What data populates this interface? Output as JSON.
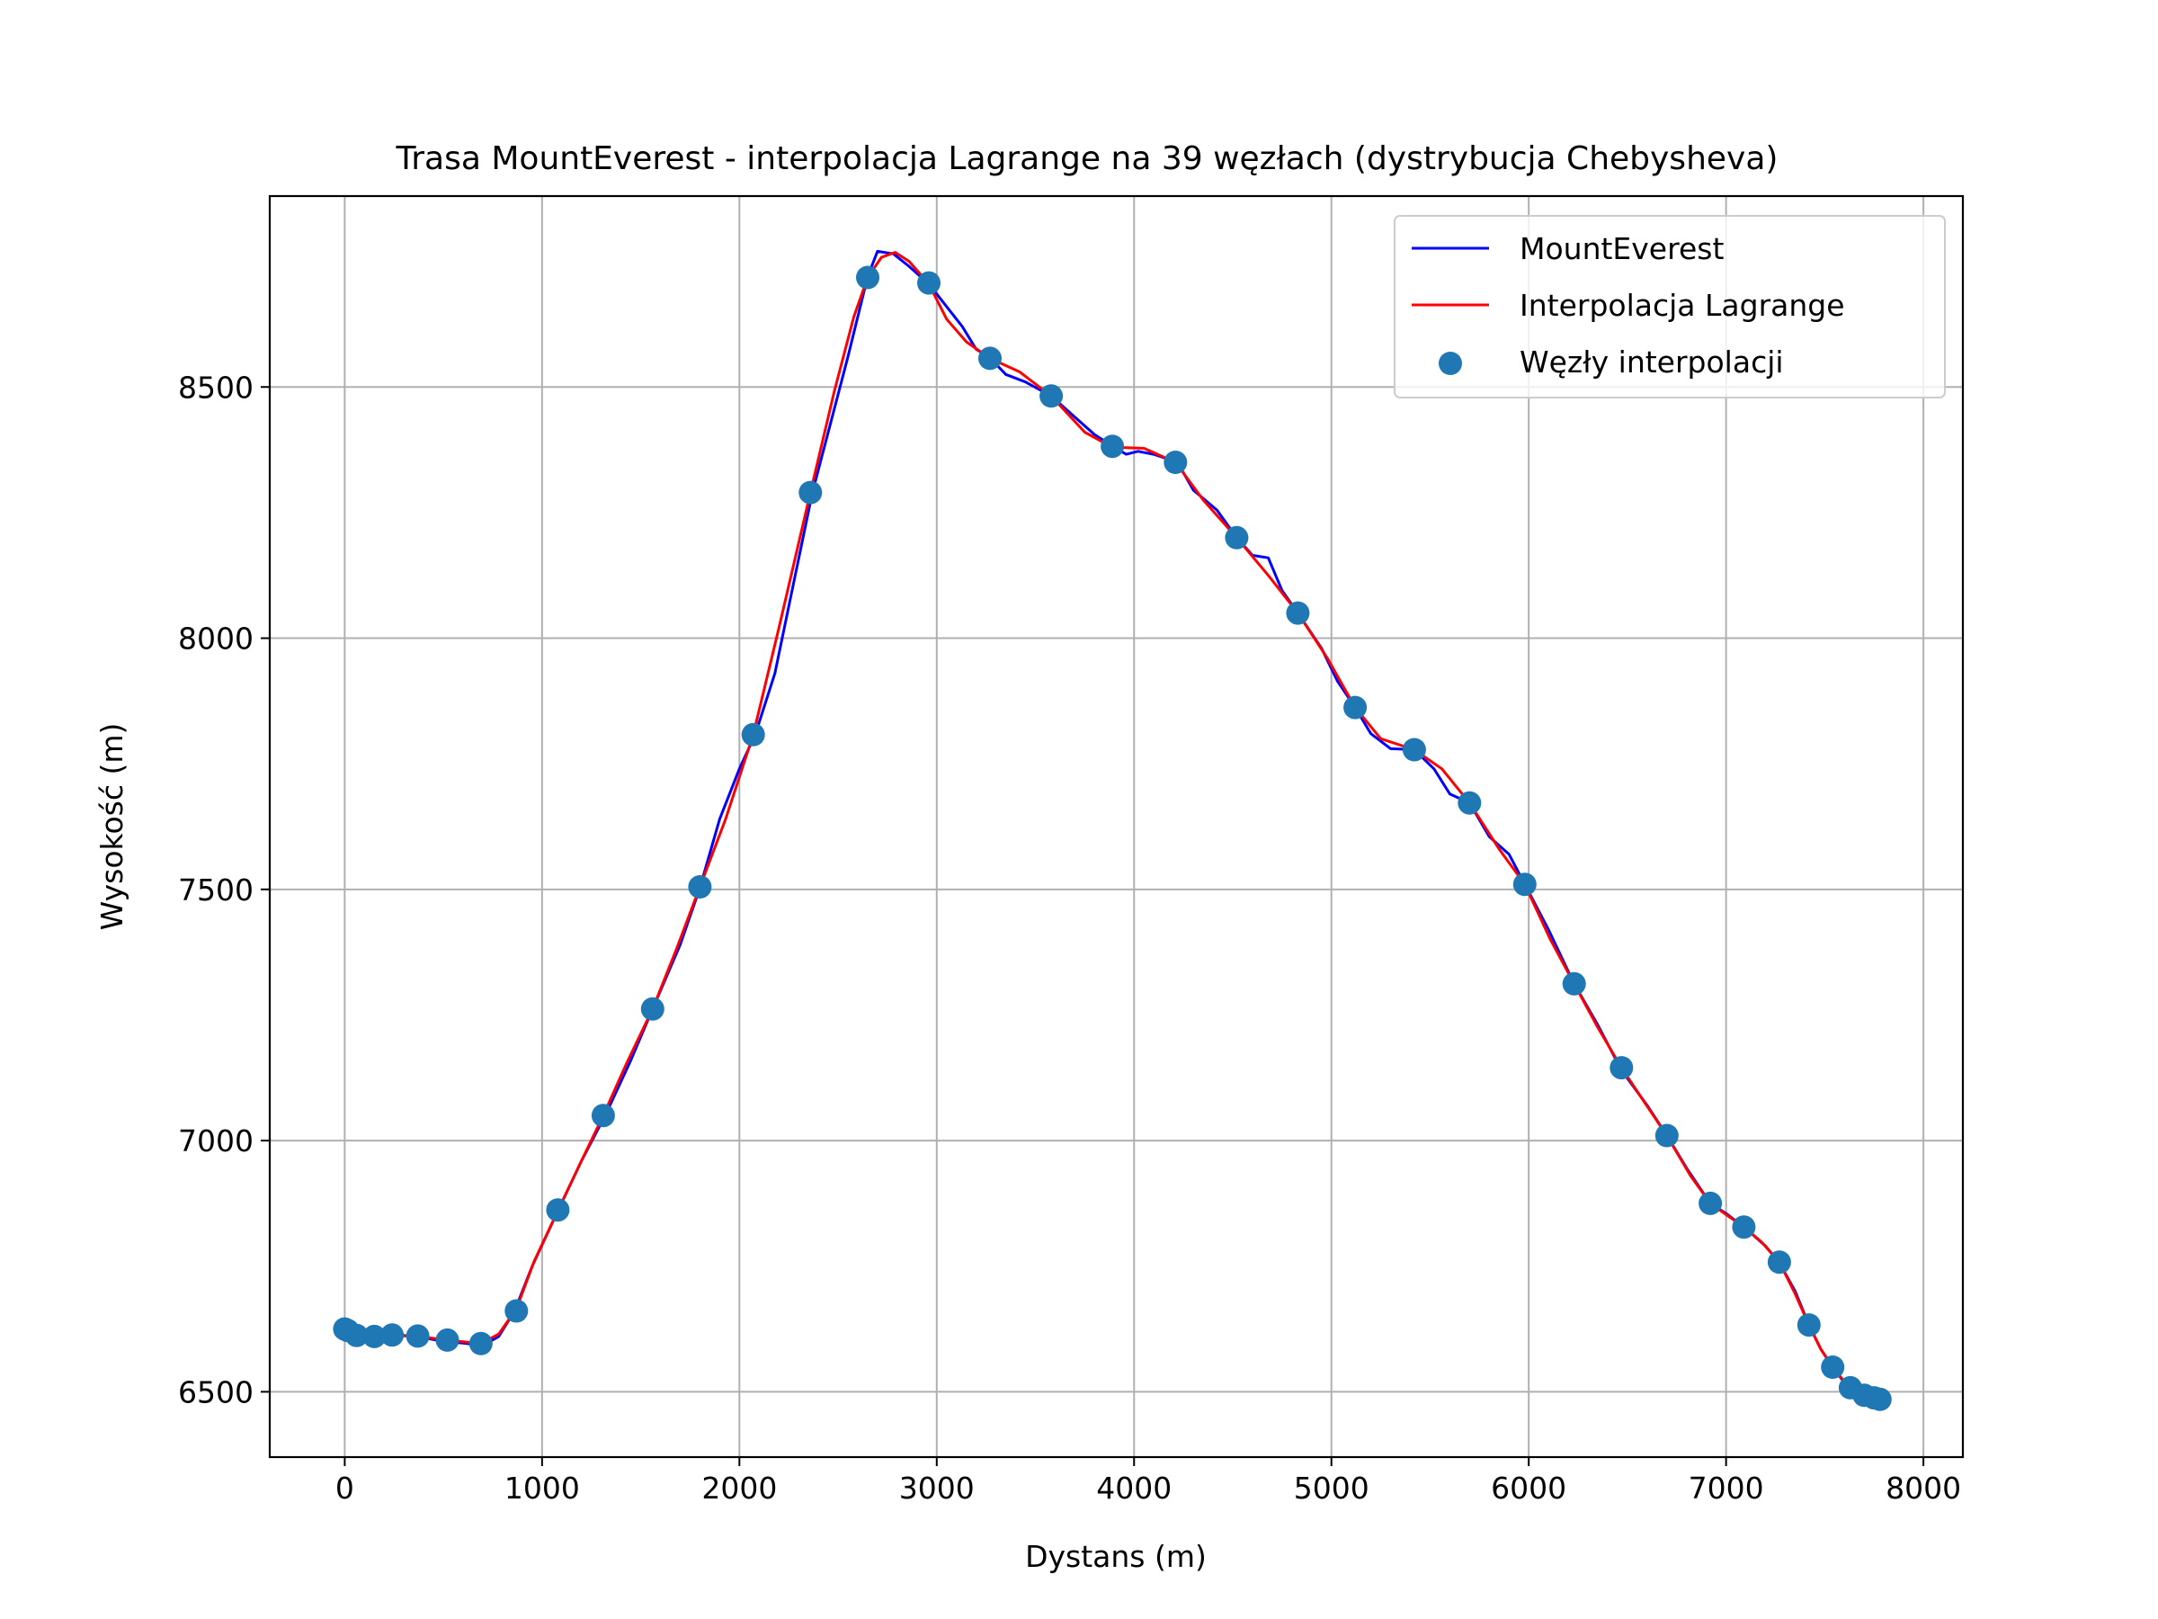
{
  "chart_data": {
    "type": "line",
    "title": "Trasa MountEverest - interpolacja Lagrange na 39 węzłach (dystrybucja Chebysheva)",
    "xlabel": "Dystans (m)",
    "ylabel": "Wysokość (m)",
    "xlim": [
      -380,
      8200
    ],
    "ylim": [
      6370,
      8880
    ],
    "xticks": [
      0,
      1000,
      2000,
      3000,
      4000,
      5000,
      6000,
      7000,
      8000
    ],
    "xtick_labels": [
      "0",
      "1000",
      "2000",
      "3000",
      "4000",
      "5000",
      "6000",
      "7000",
      "8000"
    ],
    "yticks": [
      6500,
      7000,
      7500,
      8000,
      8500
    ],
    "ytick_labels": [
      "6500",
      "7000",
      "7500",
      "8000",
      "8500"
    ],
    "grid": true,
    "legend_position": "top-right",
    "legend": [
      "MountEverest",
      "Interpolacja Lagrange",
      "Węzły interpolacji"
    ],
    "series": [
      {
        "name": "MountEverest",
        "style": "line",
        "color": "#0000ff",
        "x": [
          0,
          100,
          200,
          300,
          400,
          500,
          600,
          700,
          780,
          860,
          950,
          1080,
          1200,
          1320,
          1450,
          1560,
          1700,
          1800,
          1900,
          2000,
          2080,
          2180,
          2280,
          2370,
          2450,
          2550,
          2650,
          2700,
          2780,
          2860,
          2960,
          3050,
          3130,
          3200,
          3270,
          3350,
          3450,
          3580,
          3700,
          3800,
          3900,
          3960,
          4020,
          4100,
          4220,
          4300,
          4420,
          4520,
          4600,
          4680,
          4750,
          4830,
          4950,
          5030,
          5120,
          5200,
          5300,
          5420,
          5520,
          5600,
          5700,
          5800,
          5900,
          5980,
          6100,
          6230,
          6350,
          6470,
          6600,
          6700,
          6800,
          6920,
          7000,
          7100,
          7200,
          7270,
          7350,
          7420,
          7480,
          7540,
          7600,
          7640,
          7700,
          7780
        ],
        "y": [
          6625,
          6610,
          6608,
          6612,
          6608,
          6600,
          6597,
          6592,
          6610,
          6660,
          6750,
          6860,
          6960,
          7050,
          7160,
          7262,
          7390,
          7503,
          7640,
          7740,
          7808,
          7930,
          8120,
          8290,
          8410,
          8560,
          8720,
          8770,
          8765,
          8740,
          8705,
          8660,
          8620,
          8575,
          8558,
          8525,
          8510,
          8482,
          8440,
          8405,
          8380,
          8366,
          8372,
          8366,
          8350,
          8295,
          8255,
          8200,
          8165,
          8160,
          8095,
          8050,
          7980,
          7915,
          7862,
          7810,
          7780,
          7778,
          7740,
          7690,
          7672,
          7605,
          7570,
          7510,
          7420,
          7312,
          7230,
          7140,
          7070,
          7010,
          6945,
          6875,
          6855,
          6825,
          6790,
          6757,
          6700,
          6633,
          6585,
          6549,
          6518,
          6505,
          6495,
          6485
        ]
      },
      {
        "name": "Interpolacja Lagrange",
        "style": "line",
        "color": "#ff0000",
        "x": [
          0,
          80,
          160,
          250,
          370,
          520,
          690,
          780,
          870,
          960,
          1080,
          1200,
          1310,
          1430,
          1560,
          1680,
          1800,
          1930,
          2070,
          2200,
          2360,
          2480,
          2580,
          2650,
          2720,
          2790,
          2860,
          2960,
          3050,
          3150,
          3270,
          3420,
          3580,
          3750,
          3890,
          4050,
          4210,
          4350,
          4520,
          4680,
          4830,
          4980,
          5120,
          5250,
          5420,
          5560,
          5700,
          5850,
          5980,
          6110,
          6230,
          6350,
          6470,
          6580,
          6700,
          6820,
          6920,
          7010,
          7090,
          7180,
          7270,
          7350,
          7420,
          7480,
          7540,
          7590,
          7630,
          7670,
          7700,
          7740,
          7780
        ],
        "y": [
          6625,
          6614,
          6610,
          6612,
          6610,
          6603,
          6596,
          6615,
          6665,
          6760,
          6860,
          6960,
          7050,
          7155,
          7262,
          7380,
          7505,
          7640,
          7808,
          8020,
          8290,
          8490,
          8640,
          8718,
          8758,
          8768,
          8750,
          8705,
          8635,
          8590,
          8557,
          8530,
          8482,
          8410,
          8380,
          8378,
          8350,
          8275,
          8200,
          8125,
          8050,
          7960,
          7862,
          7800,
          7778,
          7740,
          7672,
          7580,
          7510,
          7400,
          7312,
          7225,
          7145,
          7080,
          7010,
          6930,
          6875,
          6850,
          6828,
          6798,
          6758,
          6695,
          6633,
          6585,
          6549,
          6525,
          6508,
          6500,
          6493,
          6488,
          6485
        ]
      },
      {
        "name": "Węzły interpolacji",
        "style": "scatter",
        "color": "#1f77b4",
        "x": [
          0,
          15,
          60,
          150,
          240,
          370,
          520,
          690,
          870,
          1080,
          1310,
          1560,
          1800,
          2070,
          2360,
          2650,
          2960,
          3270,
          3580,
          3890,
          4210,
          4520,
          4830,
          5120,
          5420,
          5700,
          5980,
          6230,
          6470,
          6700,
          6920,
          7090,
          7270,
          7420,
          7540,
          7630,
          7700,
          7750,
          7780
        ],
        "y": [
          6625,
          6622,
          6612,
          6610,
          6613,
          6611,
          6603,
          6596,
          6661,
          6862,
          7050,
          7262,
          7505,
          7808,
          8290,
          8718,
          8707,
          8557,
          8482,
          8382,
          8350,
          8200,
          8050,
          7862,
          7778,
          7672,
          7510,
          7312,
          7145,
          7010,
          6875,
          6828,
          6758,
          6633,
          6549,
          6508,
          6493,
          6488,
          6485
        ]
      }
    ]
  }
}
